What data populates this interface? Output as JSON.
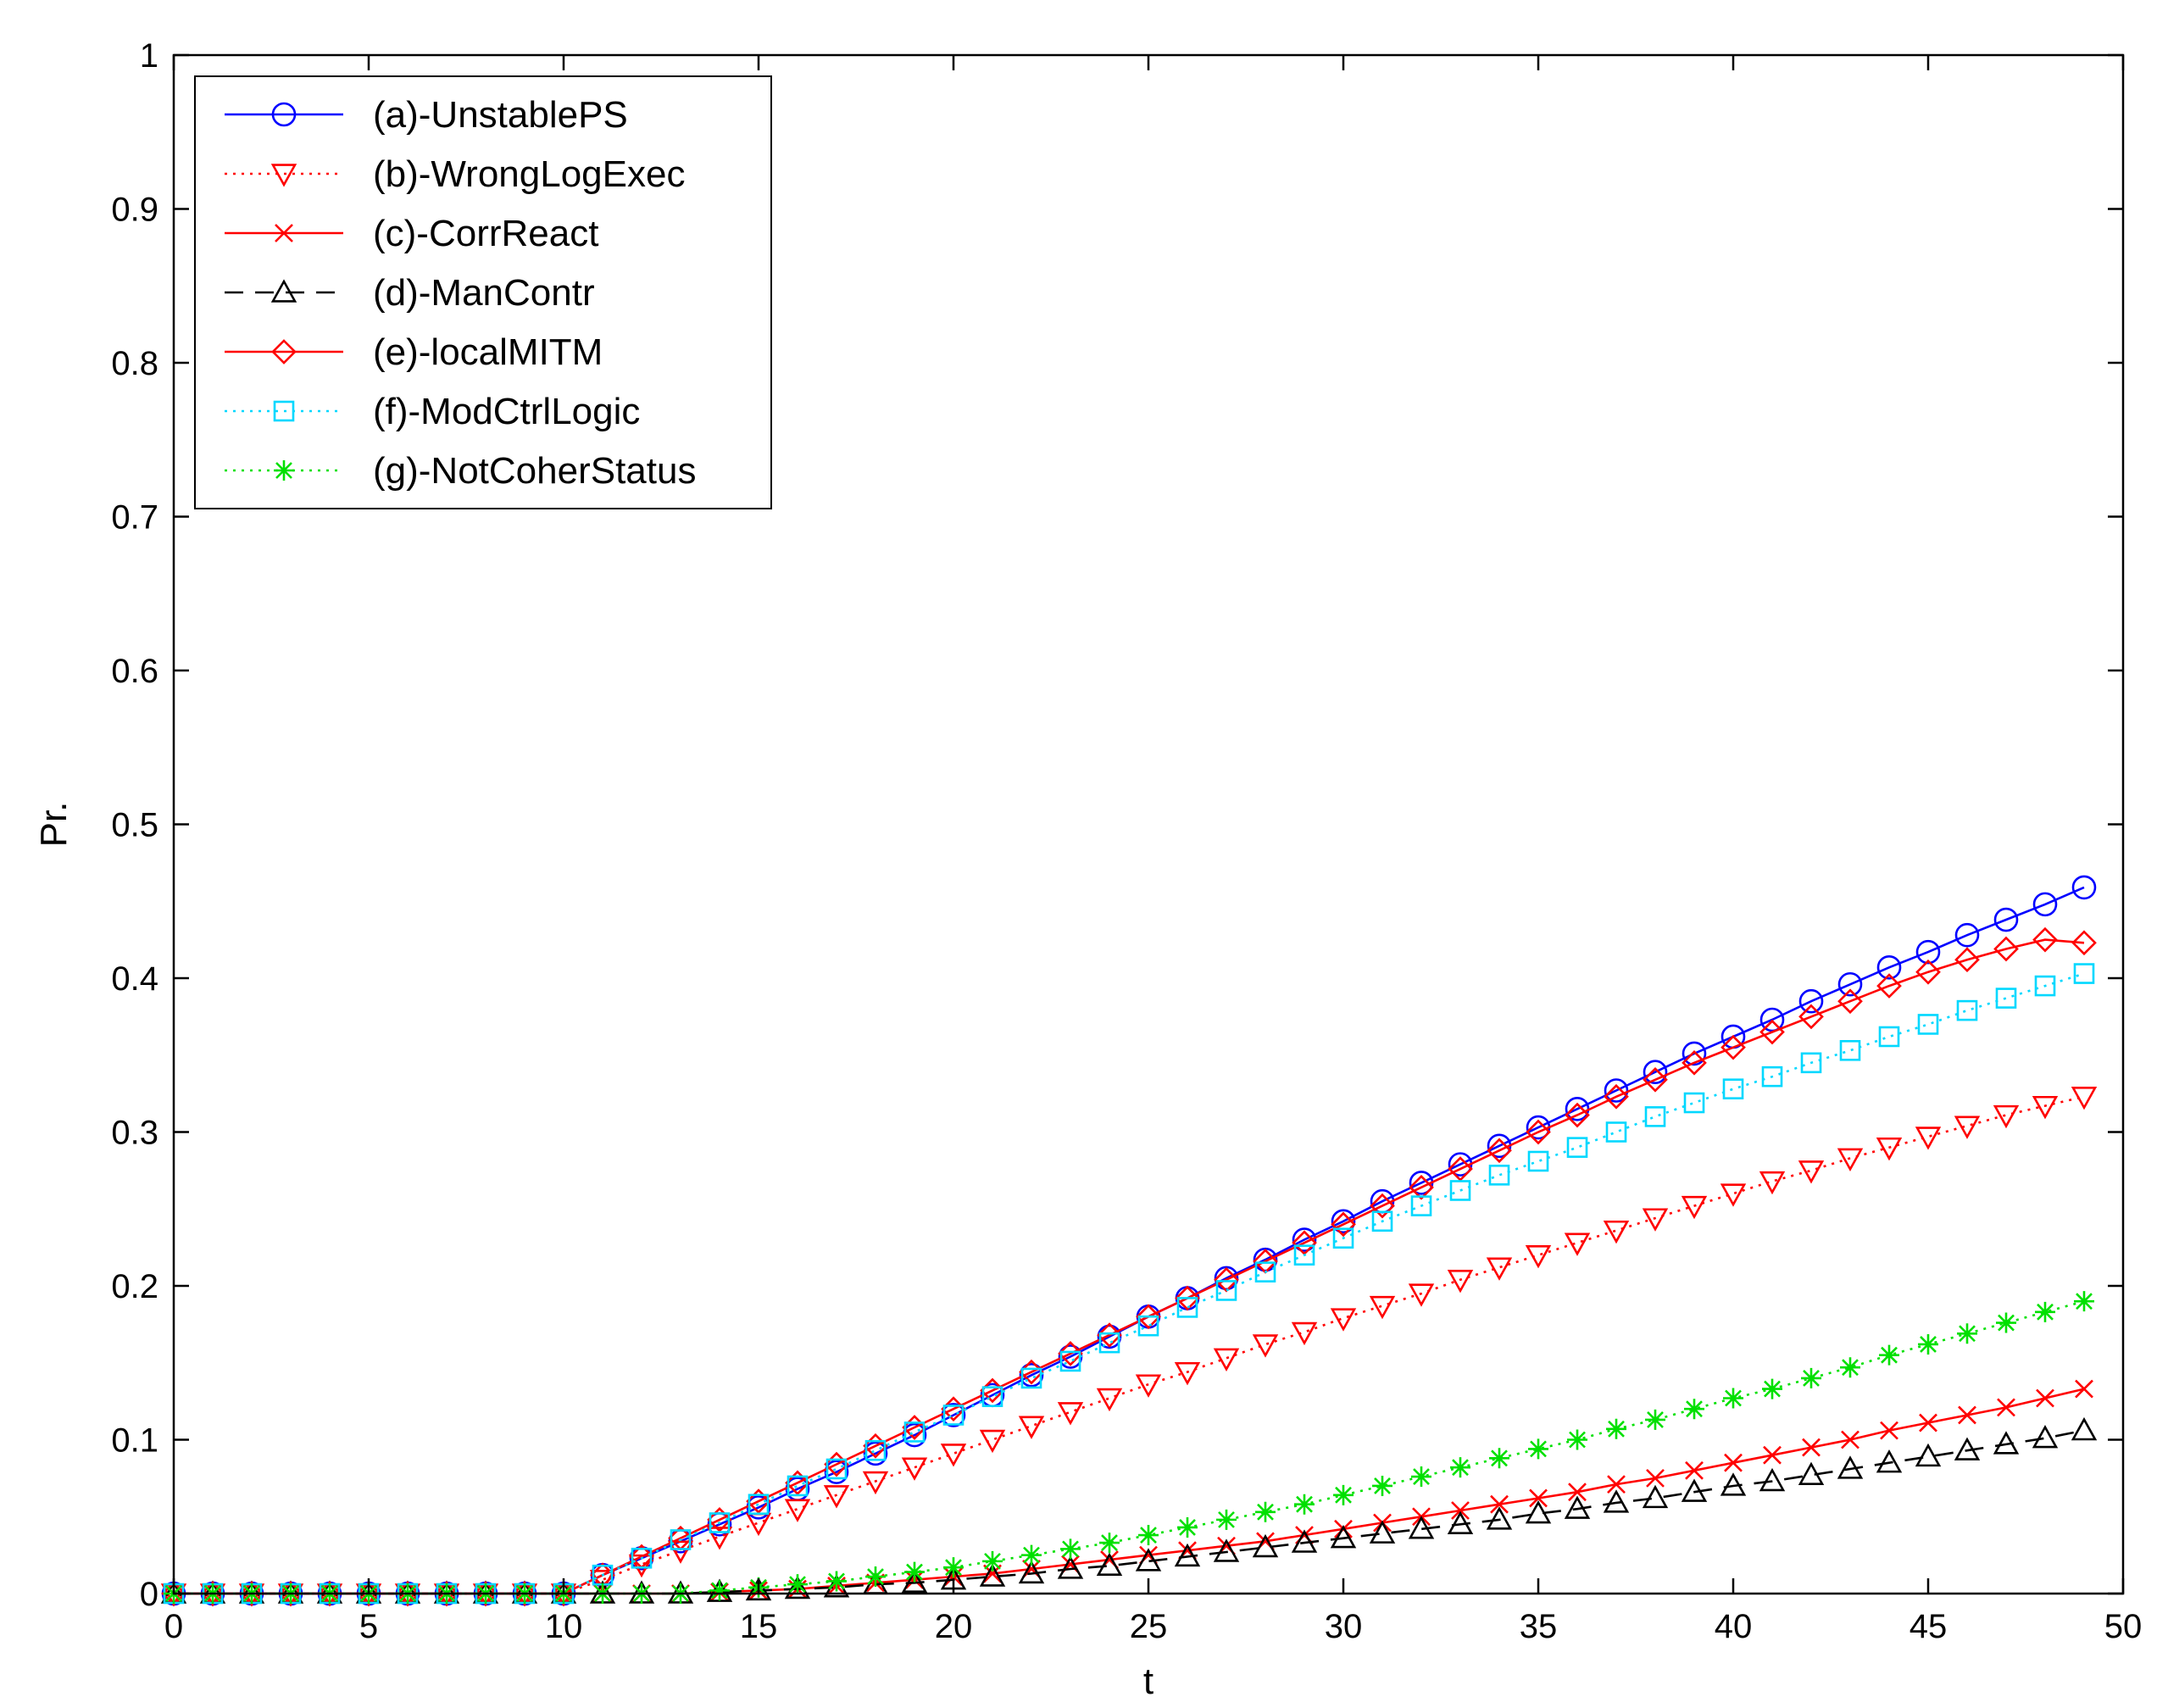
{
  "chart_data": {
    "type": "line",
    "title": "",
    "xlabel": "t",
    "ylabel": "Pr.",
    "xlim": [
      0,
      50
    ],
    "ylim": [
      0,
      1
    ],
    "xticks": [
      "0",
      "5",
      "10",
      "15",
      "20",
      "25",
      "30",
      "35",
      "40",
      "45",
      "50"
    ],
    "yticks": [
      "0",
      "0.1",
      "0.2",
      "0.3",
      "0.4",
      "0.5",
      "0.6",
      "0.7",
      "0.8",
      "0.9",
      "1"
    ],
    "legend_position": "top-left",
    "x": [
      0,
      1,
      2,
      3,
      4,
      5,
      6,
      7,
      8,
      9,
      10,
      11,
      12,
      13,
      14,
      15,
      16,
      17,
      18,
      19,
      20,
      21,
      22,
      23,
      24,
      25,
      26,
      27,
      28,
      29,
      30,
      31,
      32,
      33,
      34,
      35,
      36,
      37,
      38,
      39,
      40,
      41,
      42,
      43,
      44,
      45,
      46,
      47,
      48,
      49
    ],
    "series": [
      {
        "name": "(a)-UnstablePS",
        "color": "#0000ff",
        "dash": "solid",
        "marker": "circle",
        "values": [
          0,
          0,
          0,
          0,
          0,
          0,
          0,
          0,
          0,
          0,
          0,
          0.012,
          0.023,
          0.034,
          0.045,
          0.056,
          0.068,
          0.079,
          0.091,
          0.103,
          0.116,
          0.129,
          0.142,
          0.154,
          0.167,
          0.18,
          0.192,
          0.205,
          0.217,
          0.23,
          0.242,
          0.255,
          0.267,
          0.279,
          0.291,
          0.303,
          0.315,
          0.327,
          0.339,
          0.351,
          0.362,
          0.373,
          0.385,
          0.396,
          0.407,
          0.417,
          0.428,
          0.438,
          0.448,
          0.459
        ]
      },
      {
        "name": "(b)-WrongLogExec",
        "color": "#ff0000",
        "dash": "dotted",
        "marker": "triangle-down",
        "values": [
          0,
          0,
          0,
          0,
          0,
          0,
          0,
          0,
          0,
          0,
          0,
          0.009,
          0.019,
          0.028,
          0.037,
          0.046,
          0.055,
          0.064,
          0.073,
          0.082,
          0.091,
          0.1,
          0.109,
          0.118,
          0.127,
          0.136,
          0.144,
          0.153,
          0.162,
          0.17,
          0.179,
          0.187,
          0.195,
          0.204,
          0.212,
          0.22,
          0.228,
          0.236,
          0.244,
          0.252,
          0.26,
          0.268,
          0.275,
          0.283,
          0.29,
          0.297,
          0.304,
          0.311,
          0.317,
          0.323
        ]
      },
      {
        "name": "(c)-CorrReact",
        "color": "#ff0000",
        "dash": "solid",
        "marker": "x",
        "values": [
          0,
          0,
          0,
          0,
          0,
          0,
          0,
          0,
          0,
          0,
          0,
          0,
          0,
          0,
          0.001,
          0.002,
          0.003,
          0.005,
          0.007,
          0.009,
          0.011,
          0.013,
          0.016,
          0.019,
          0.022,
          0.025,
          0.028,
          0.031,
          0.034,
          0.038,
          0.042,
          0.046,
          0.05,
          0.054,
          0.058,
          0.062,
          0.066,
          0.071,
          0.075,
          0.08,
          0.085,
          0.09,
          0.095,
          0.1,
          0.106,
          0.111,
          0.116,
          0.121,
          0.127,
          0.133
        ]
      },
      {
        "name": "(d)-ManContr",
        "color": "#000000",
        "dash": "dashed",
        "marker": "triangle-up",
        "values": [
          0,
          0,
          0,
          0,
          0,
          0,
          0,
          0,
          0,
          0,
          0,
          0,
          0,
          0,
          0.001,
          0.002,
          0.003,
          0.004,
          0.006,
          0.007,
          0.009,
          0.011,
          0.013,
          0.016,
          0.018,
          0.021,
          0.024,
          0.027,
          0.03,
          0.033,
          0.036,
          0.039,
          0.042,
          0.045,
          0.048,
          0.052,
          0.055,
          0.059,
          0.062,
          0.066,
          0.07,
          0.073,
          0.077,
          0.081,
          0.085,
          0.089,
          0.093,
          0.097,
          0.101,
          0.106
        ]
      },
      {
        "name": "(e)-localMITM",
        "color": "#ff0000",
        "dash": "solid",
        "marker": "diamond",
        "values": [
          0,
          0,
          0,
          0,
          0,
          0,
          0,
          0,
          0,
          0,
          0,
          0.012,
          0.024,
          0.036,
          0.048,
          0.06,
          0.072,
          0.084,
          0.096,
          0.108,
          0.12,
          0.132,
          0.144,
          0.156,
          0.168,
          0.18,
          0.192,
          0.204,
          0.216,
          0.228,
          0.24,
          0.252,
          0.264,
          0.276,
          0.288,
          0.3,
          0.311,
          0.323,
          0.334,
          0.345,
          0.355,
          0.365,
          0.375,
          0.385,
          0.395,
          0.404,
          0.412,
          0.419,
          0.425,
          0.423
        ]
      },
      {
        "name": "(f)-ModCtrlLogic",
        "color": "#00d8ff",
        "dash": "dotted",
        "marker": "square",
        "values": [
          0,
          0,
          0,
          0,
          0,
          0,
          0,
          0,
          0,
          0,
          0,
          0.012,
          0.023,
          0.035,
          0.046,
          0.058,
          0.07,
          0.081,
          0.093,
          0.105,
          0.116,
          0.128,
          0.14,
          0.151,
          0.163,
          0.174,
          0.186,
          0.197,
          0.209,
          0.22,
          0.231,
          0.242,
          0.252,
          0.262,
          0.272,
          0.281,
          0.29,
          0.3,
          0.31,
          0.319,
          0.328,
          0.336,
          0.345,
          0.353,
          0.362,
          0.37,
          0.379,
          0.387,
          0.395,
          0.403
        ]
      },
      {
        "name": "(g)-NotCoherStatus",
        "color": "#00e000",
        "dash": "dotted",
        "marker": "star",
        "values": [
          0,
          0,
          0,
          0,
          0,
          0,
          0,
          0,
          0,
          0,
          0,
          0,
          0,
          0,
          0.002,
          0.004,
          0.006,
          0.008,
          0.011,
          0.014,
          0.017,
          0.021,
          0.025,
          0.029,
          0.033,
          0.038,
          0.043,
          0.048,
          0.053,
          0.058,
          0.064,
          0.07,
          0.076,
          0.082,
          0.088,
          0.094,
          0.1,
          0.107,
          0.113,
          0.12,
          0.127,
          0.133,
          0.14,
          0.147,
          0.155,
          0.162,
          0.169,
          0.176,
          0.183,
          0.19
        ]
      }
    ]
  }
}
